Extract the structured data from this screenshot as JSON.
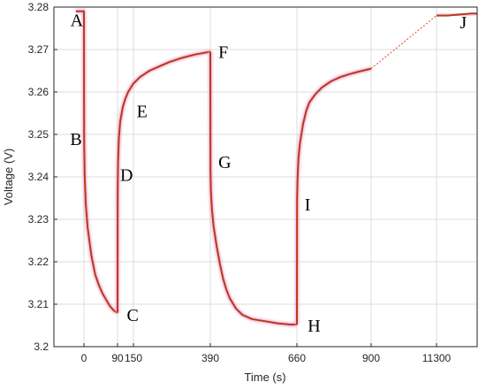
{
  "chart_data": {
    "type": "line",
    "xlabel": "Time (s)",
    "ylabel": "Voltage (V)",
    "ylim": [
      3.2,
      3.28
    ],
    "yticks": [
      "3.2",
      "3.21",
      "3.22",
      "3.23",
      "3.24",
      "3.25",
      "3.26",
      "3.27",
      "3.28"
    ],
    "xtick_labels": [
      "0",
      "90",
      "150",
      "390",
      "660",
      "900",
      "11300"
    ],
    "grid": true,
    "colors": {
      "series": "#b83a1e",
      "glow": "#f3a9cf",
      "gap_line": "#e8604a",
      "axis": "#262626"
    },
    "series": [
      {
        "x": [
          -20,
          0,
          0.5,
          2,
          5,
          10,
          20,
          30,
          40,
          50,
          60,
          70,
          80,
          90
        ],
        "y": [
          3.279,
          3.279,
          3.249,
          3.2405,
          3.2335,
          3.228,
          3.2215,
          3.217,
          3.2145,
          3.2125,
          3.211,
          3.2095,
          3.2085,
          3.208
        ]
      },
      {
        "x": [
          90,
          90.5,
          92,
          95,
          100,
          110,
          120,
          130,
          150,
          170,
          200,
          230,
          260,
          300,
          340,
          370,
          390
        ],
        "y": [
          3.208,
          3.237,
          3.2435,
          3.249,
          3.253,
          3.2565,
          3.2585,
          3.26,
          3.262,
          3.2635,
          3.265,
          3.266,
          3.267,
          3.268,
          3.2688,
          3.2692,
          3.2695
        ]
      },
      {
        "x": [
          390,
          390.5,
          392,
          395,
          400,
          410,
          420,
          430,
          440,
          450,
          470,
          490,
          520,
          560,
          600,
          640,
          660
        ],
        "y": [
          3.2695,
          3.2415,
          3.2365,
          3.2325,
          3.2285,
          3.2235,
          3.2195,
          3.216,
          3.2135,
          3.2115,
          3.209,
          3.2075,
          3.2065,
          3.206,
          3.2055,
          3.2052,
          3.2052
        ]
      },
      {
        "x": [
          660,
          660.5,
          662,
          665,
          670,
          680,
          690,
          700,
          720,
          740,
          770,
          800,
          830,
          860,
          900
        ],
        "y": [
          3.2052,
          3.2345,
          3.2395,
          3.2445,
          3.248,
          3.2525,
          3.2555,
          3.2575,
          3.2595,
          3.261,
          3.2625,
          3.2635,
          3.2642,
          3.2648,
          3.2655
        ]
      },
      {
        "x": [
          11300,
          11500,
          11900,
          12000
        ],
        "y": [
          3.278,
          3.278,
          3.2785,
          3.2785
        ]
      }
    ],
    "annotations": [
      {
        "text": "A",
        "x": -2,
        "y": 3.277
      },
      {
        "text": "B",
        "x": -5,
        "y": 3.249
      },
      {
        "text": "C",
        "x": 125,
        "y": 3.2075
      },
      {
        "text": "D",
        "x": 100,
        "y": 3.2405
      },
      {
        "text": "E",
        "x": 160,
        "y": 3.2555
      },
      {
        "text": "F",
        "x": 415,
        "y": 3.2695
      },
      {
        "text": "G",
        "x": 415,
        "y": 3.2435
      },
      {
        "text": "H",
        "x": 695,
        "y": 3.205
      },
      {
        "text": "I",
        "x": 685,
        "y": 3.2335
      },
      {
        "text": "J",
        "x": 11820,
        "y": 3.2765
      }
    ]
  }
}
